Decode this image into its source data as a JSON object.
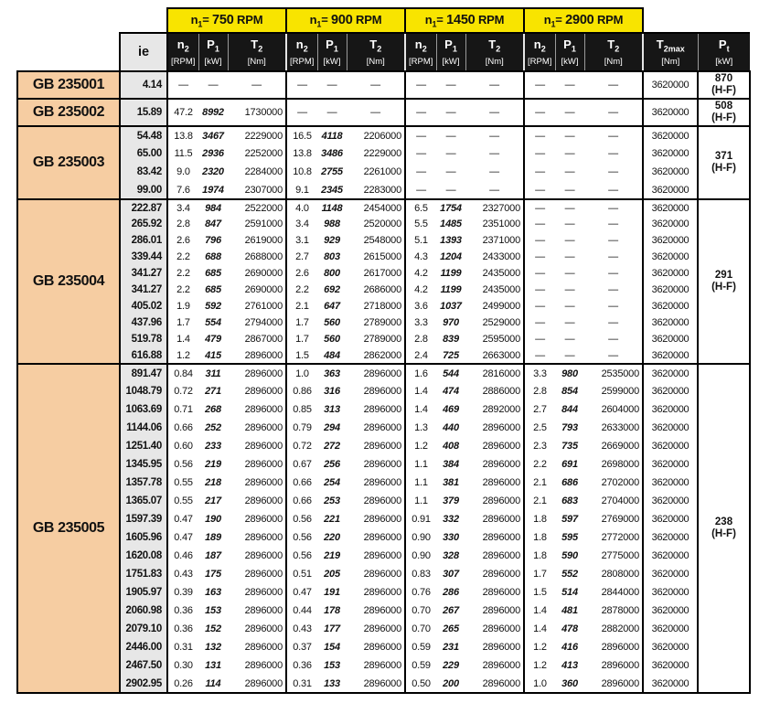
{
  "table": {
    "dash": "—",
    "ie_header": "ie",
    "rpm_headers": [
      {
        "sym": "n",
        "sub": "1",
        "eq": "= ",
        "value": "750",
        "unit": " RPM"
      },
      {
        "sym": "n",
        "sub": "1",
        "eq": "= ",
        "value": "900",
        "unit": " RPM"
      },
      {
        "sym": "n",
        "sub": "1",
        "eq": "= ",
        "value": "1450",
        "unit": " RPM"
      },
      {
        "sym": "n",
        "sub": "1",
        "eq": "= ",
        "value": "2900",
        "unit": " RPM"
      }
    ],
    "sub_headers": [
      {
        "sym": "n",
        "sub": "2",
        "unit": "[RPM]"
      },
      {
        "sym": "P",
        "sub": "1",
        "unit": "[kW]"
      },
      {
        "sym": "T",
        "sub": "2",
        "unit": "[Nm]"
      }
    ],
    "t2max_header": {
      "sym": "T",
      "sub": "2max",
      "unit": "[Nm]"
    },
    "pt_header": {
      "sym": "P",
      "sub": "t",
      "unit": "[kW]"
    },
    "groups": [
      {
        "model": "GB 235001",
        "pt": {
          "value": "870",
          "note": "(H-F)"
        },
        "rows": [
          {
            "ie": "4.14",
            "vals": [
              null,
              null,
              null,
              null
            ],
            "t2max": "3620000"
          }
        ]
      },
      {
        "model": "GB 235002",
        "pt": {
          "value": "508",
          "note": "(H-F)"
        },
        "rows": [
          {
            "ie": "15.89",
            "vals": [
              [
                "47.2",
                "8992",
                "1730000"
              ],
              null,
              null,
              null
            ],
            "t2max": "3620000"
          }
        ]
      },
      {
        "model": "GB 235003",
        "pt": {
          "value": "371",
          "note": "(H-F)"
        },
        "rows": [
          {
            "ie": "54.48",
            "vals": [
              [
                "13.8",
                "3467",
                "2229000"
              ],
              [
                "16.5",
                "4118",
                "2206000"
              ],
              null,
              null
            ],
            "t2max": "3620000"
          },
          {
            "ie": "65.00",
            "vals": [
              [
                "11.5",
                "2936",
                "2252000"
              ],
              [
                "13.8",
                "3486",
                "2229000"
              ],
              null,
              null
            ],
            "t2max": "3620000"
          },
          {
            "ie": "83.42",
            "vals": [
              [
                "9.0",
                "2320",
                "2284000"
              ],
              [
                "10.8",
                "2755",
                "2261000"
              ],
              null,
              null
            ],
            "t2max": "3620000"
          },
          {
            "ie": "99.00",
            "vals": [
              [
                "7.6",
                "1974",
                "2307000"
              ],
              [
                "9.1",
                "2345",
                "2283000"
              ],
              null,
              null
            ],
            "t2max": "3620000"
          }
        ]
      },
      {
        "model": "GB 235004",
        "pt": {
          "value": "291",
          "note": "(H-F)"
        },
        "rows": [
          {
            "ie": "222.87",
            "vals": [
              [
                "3.4",
                "984",
                "2522000"
              ],
              [
                "4.0",
                "1148",
                "2454000"
              ],
              [
                "6.5",
                "1754",
                "2327000"
              ],
              null
            ],
            "t2max": "3620000"
          },
          {
            "ie": "265.92",
            "vals": [
              [
                "2.8",
                "847",
                "2591000"
              ],
              [
                "3.4",
                "988",
                "2520000"
              ],
              [
                "5.5",
                "1485",
                "2351000"
              ],
              null
            ],
            "t2max": "3620000"
          },
          {
            "ie": "286.01",
            "vals": [
              [
                "2.6",
                "796",
                "2619000"
              ],
              [
                "3.1",
                "929",
                "2548000"
              ],
              [
                "5.1",
                "1393",
                "2371000"
              ],
              null
            ],
            "t2max": "3620000"
          },
          {
            "ie": "339.44",
            "vals": [
              [
                "2.2",
                "688",
                "2688000"
              ],
              [
                "2.7",
                "803",
                "2615000"
              ],
              [
                "4.3",
                "1204",
                "2433000"
              ],
              null
            ],
            "t2max": "3620000"
          },
          {
            "ie": "341.27",
            "vals": [
              [
                "2.2",
                "685",
                "2690000"
              ],
              [
                "2.6",
                "800",
                "2617000"
              ],
              [
                "4.2",
                "1199",
                "2435000"
              ],
              null
            ],
            "t2max": "3620000"
          },
          {
            "ie": "341.27",
            "vals": [
              [
                "2.2",
                "685",
                "2690000"
              ],
              [
                "2.2",
                "692",
                "2686000"
              ],
              [
                "4.2",
                "1199",
                "2435000"
              ],
              null
            ],
            "t2max": "3620000"
          },
          {
            "ie": "405.02",
            "vals": [
              [
                "1.9",
                "592",
                "2761000"
              ],
              [
                "2.1",
                "647",
                "2718000"
              ],
              [
                "3.6",
                "1037",
                "2499000"
              ],
              null
            ],
            "t2max": "3620000"
          },
          {
            "ie": "437.96",
            "vals": [
              [
                "1.7",
                "554",
                "2794000"
              ],
              [
                "1.7",
                "560",
                "2789000"
              ],
              [
                "3.3",
                "970",
                "2529000"
              ],
              null
            ],
            "t2max": "3620000"
          },
          {
            "ie": "519.78",
            "vals": [
              [
                "1.4",
                "479",
                "2867000"
              ],
              [
                "1.7",
                "560",
                "2789000"
              ],
              [
                "2.8",
                "839",
                "2595000"
              ],
              null
            ],
            "t2max": "3620000"
          },
          {
            "ie": "616.88",
            "vals": [
              [
                "1.2",
                "415",
                "2896000"
              ],
              [
                "1.5",
                "484",
                "2862000"
              ],
              [
                "2.4",
                "725",
                "2663000"
              ],
              null
            ],
            "t2max": "3620000"
          }
        ]
      },
      {
        "model": "GB 235005",
        "pt": {
          "value": "238",
          "note": "(H-F)"
        },
        "rows": [
          {
            "ie": "891.47",
            "vals": [
              [
                "0.84",
                "311",
                "2896000"
              ],
              [
                "1.0",
                "363",
                "2896000"
              ],
              [
                "1.6",
                "544",
                "2816000"
              ],
              [
                "3.3",
                "980",
                "2535000"
              ]
            ],
            "t2max": "3620000"
          },
          {
            "ie": "1048.79",
            "vals": [
              [
                "0.72",
                "271",
                "2896000"
              ],
              [
                "0.86",
                "316",
                "2896000"
              ],
              [
                "1.4",
                "474",
                "2886000"
              ],
              [
                "2.8",
                "854",
                "2599000"
              ]
            ],
            "t2max": "3620000"
          },
          {
            "ie": "1063.69",
            "vals": [
              [
                "0.71",
                "268",
                "2896000"
              ],
              [
                "0.85",
                "313",
                "2896000"
              ],
              [
                "1.4",
                "469",
                "2892000"
              ],
              [
                "2.7",
                "844",
                "2604000"
              ]
            ],
            "t2max": "3620000"
          },
          {
            "ie": "1144.06",
            "vals": [
              [
                "0.66",
                "252",
                "2896000"
              ],
              [
                "0.79",
                "294",
                "2896000"
              ],
              [
                "1.3",
                "440",
                "2896000"
              ],
              [
                "2.5",
                "793",
                "2633000"
              ]
            ],
            "t2max": "3620000"
          },
          {
            "ie": "1251.40",
            "vals": [
              [
                "0.60",
                "233",
                "2896000"
              ],
              [
                "0.72",
                "272",
                "2896000"
              ],
              [
                "1.2",
                "408",
                "2896000"
              ],
              [
                "2.3",
                "735",
                "2669000"
              ]
            ],
            "t2max": "3620000"
          },
          {
            "ie": "1345.95",
            "vals": [
              [
                "0.56",
                "219",
                "2896000"
              ],
              [
                "0.67",
                "256",
                "2896000"
              ],
              [
                "1.1",
                "384",
                "2896000"
              ],
              [
                "2.2",
                "691",
                "2698000"
              ]
            ],
            "t2max": "3620000"
          },
          {
            "ie": "1357.78",
            "vals": [
              [
                "0.55",
                "218",
                "2896000"
              ],
              [
                "0.66",
                "254",
                "2896000"
              ],
              [
                "1.1",
                "381",
                "2896000"
              ],
              [
                "2.1",
                "686",
                "2702000"
              ]
            ],
            "t2max": "3620000"
          },
          {
            "ie": "1365.07",
            "vals": [
              [
                "0.55",
                "217",
                "2896000"
              ],
              [
                "0.66",
                "253",
                "2896000"
              ],
              [
                "1.1",
                "379",
                "2896000"
              ],
              [
                "2.1",
                "683",
                "2704000"
              ]
            ],
            "t2max": "3620000"
          },
          {
            "ie": "1597.39",
            "vals": [
              [
                "0.47",
                "190",
                "2896000"
              ],
              [
                "0.56",
                "221",
                "2896000"
              ],
              [
                "0.91",
                "332",
                "2896000"
              ],
              [
                "1.8",
                "597",
                "2769000"
              ]
            ],
            "t2max": "3620000"
          },
          {
            "ie": "1605.96",
            "vals": [
              [
                "0.47",
                "189",
                "2896000"
              ],
              [
                "0.56",
                "220",
                "2896000"
              ],
              [
                "0.90",
                "330",
                "2896000"
              ],
              [
                "1.8",
                "595",
                "2772000"
              ]
            ],
            "t2max": "3620000"
          },
          {
            "ie": "1620.08",
            "vals": [
              [
                "0.46",
                "187",
                "2896000"
              ],
              [
                "0.56",
                "219",
                "2896000"
              ],
              [
                "0.90",
                "328",
                "2896000"
              ],
              [
                "1.8",
                "590",
                "2775000"
              ]
            ],
            "t2max": "3620000"
          },
          {
            "ie": "1751.83",
            "vals": [
              [
                "0.43",
                "175",
                "2896000"
              ],
              [
                "0.51",
                "205",
                "2896000"
              ],
              [
                "0.83",
                "307",
                "2896000"
              ],
              [
                "1.7",
                "552",
                "2808000"
              ]
            ],
            "t2max": "3620000"
          },
          {
            "ie": "1905.97",
            "vals": [
              [
                "0.39",
                "163",
                "2896000"
              ],
              [
                "0.47",
                "191",
                "2896000"
              ],
              [
                "0.76",
                "286",
                "2896000"
              ],
              [
                "1.5",
                "514",
                "2844000"
              ]
            ],
            "t2max": "3620000"
          },
          {
            "ie": "2060.98",
            "vals": [
              [
                "0.36",
                "153",
                "2896000"
              ],
              [
                "0.44",
                "178",
                "2896000"
              ],
              [
                "0.70",
                "267",
                "2896000"
              ],
              [
                "1.4",
                "481",
                "2878000"
              ]
            ],
            "t2max": "3620000"
          },
          {
            "ie": "2079.10",
            "vals": [
              [
                "0.36",
                "152",
                "2896000"
              ],
              [
                "0.43",
                "177",
                "2896000"
              ],
              [
                "0.70",
                "265",
                "2896000"
              ],
              [
                "1.4",
                "478",
                "2882000"
              ]
            ],
            "t2max": "3620000"
          },
          {
            "ie": "2446.00",
            "vals": [
              [
                "0.31",
                "132",
                "2896000"
              ],
              [
                "0.37",
                "154",
                "2896000"
              ],
              [
                "0.59",
                "231",
                "2896000"
              ],
              [
                "1.2",
                "416",
                "2896000"
              ]
            ],
            "t2max": "3620000"
          },
          {
            "ie": "2467.50",
            "vals": [
              [
                "0.30",
                "131",
                "2896000"
              ],
              [
                "0.36",
                "153",
                "2896000"
              ],
              [
                "0.59",
                "229",
                "2896000"
              ],
              [
                "1.2",
                "413",
                "2896000"
              ]
            ],
            "t2max": "3620000"
          },
          {
            "ie": "2902.95",
            "vals": [
              [
                "0.26",
                "114",
                "2896000"
              ],
              [
                "0.31",
                "133",
                "2896000"
              ],
              [
                "0.50",
                "200",
                "2896000"
              ],
              [
                "1.0",
                "360",
                "2896000"
              ]
            ],
            "t2max": "3620000"
          }
        ]
      }
    ]
  }
}
